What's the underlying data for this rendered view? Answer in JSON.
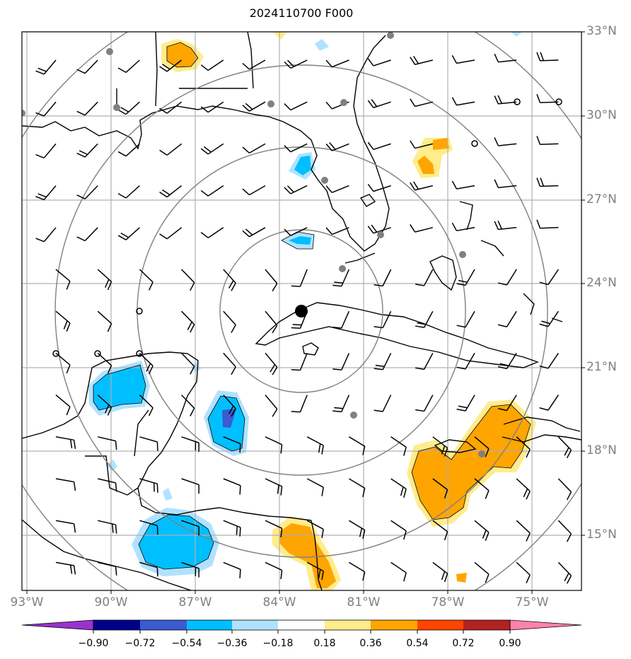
{
  "title": "2024110700 F000",
  "lat_labels": [
    "33°N",
    "30°N",
    "27°N",
    "24°N",
    "21°N",
    "18°N",
    "15°N"
  ],
  "lon_labels": [
    "93°W",
    "90°W",
    "87°W",
    "84°W",
    "81°W",
    "78°W",
    "75°W"
  ],
  "colorbar": {
    "ticks": [
      "−0.90",
      "−0.72",
      "−0.54",
      "−0.36",
      "−0.18",
      "0.18",
      "0.36",
      "0.54",
      "0.72",
      "0.90"
    ],
    "colors": [
      "#9932cc",
      "#00008b",
      "#3b5bd0",
      "#00bfff",
      "#b0e2ff",
      "#ffffff",
      "#ffec8b",
      "#ffa500",
      "#ff4500",
      "#b22222",
      "#ff82ab"
    ]
  },
  "colors": {
    "grid": "#b0b0b0",
    "range_rings": "#808080",
    "station_marker": "#808080",
    "center_marker": "#000000"
  }
}
